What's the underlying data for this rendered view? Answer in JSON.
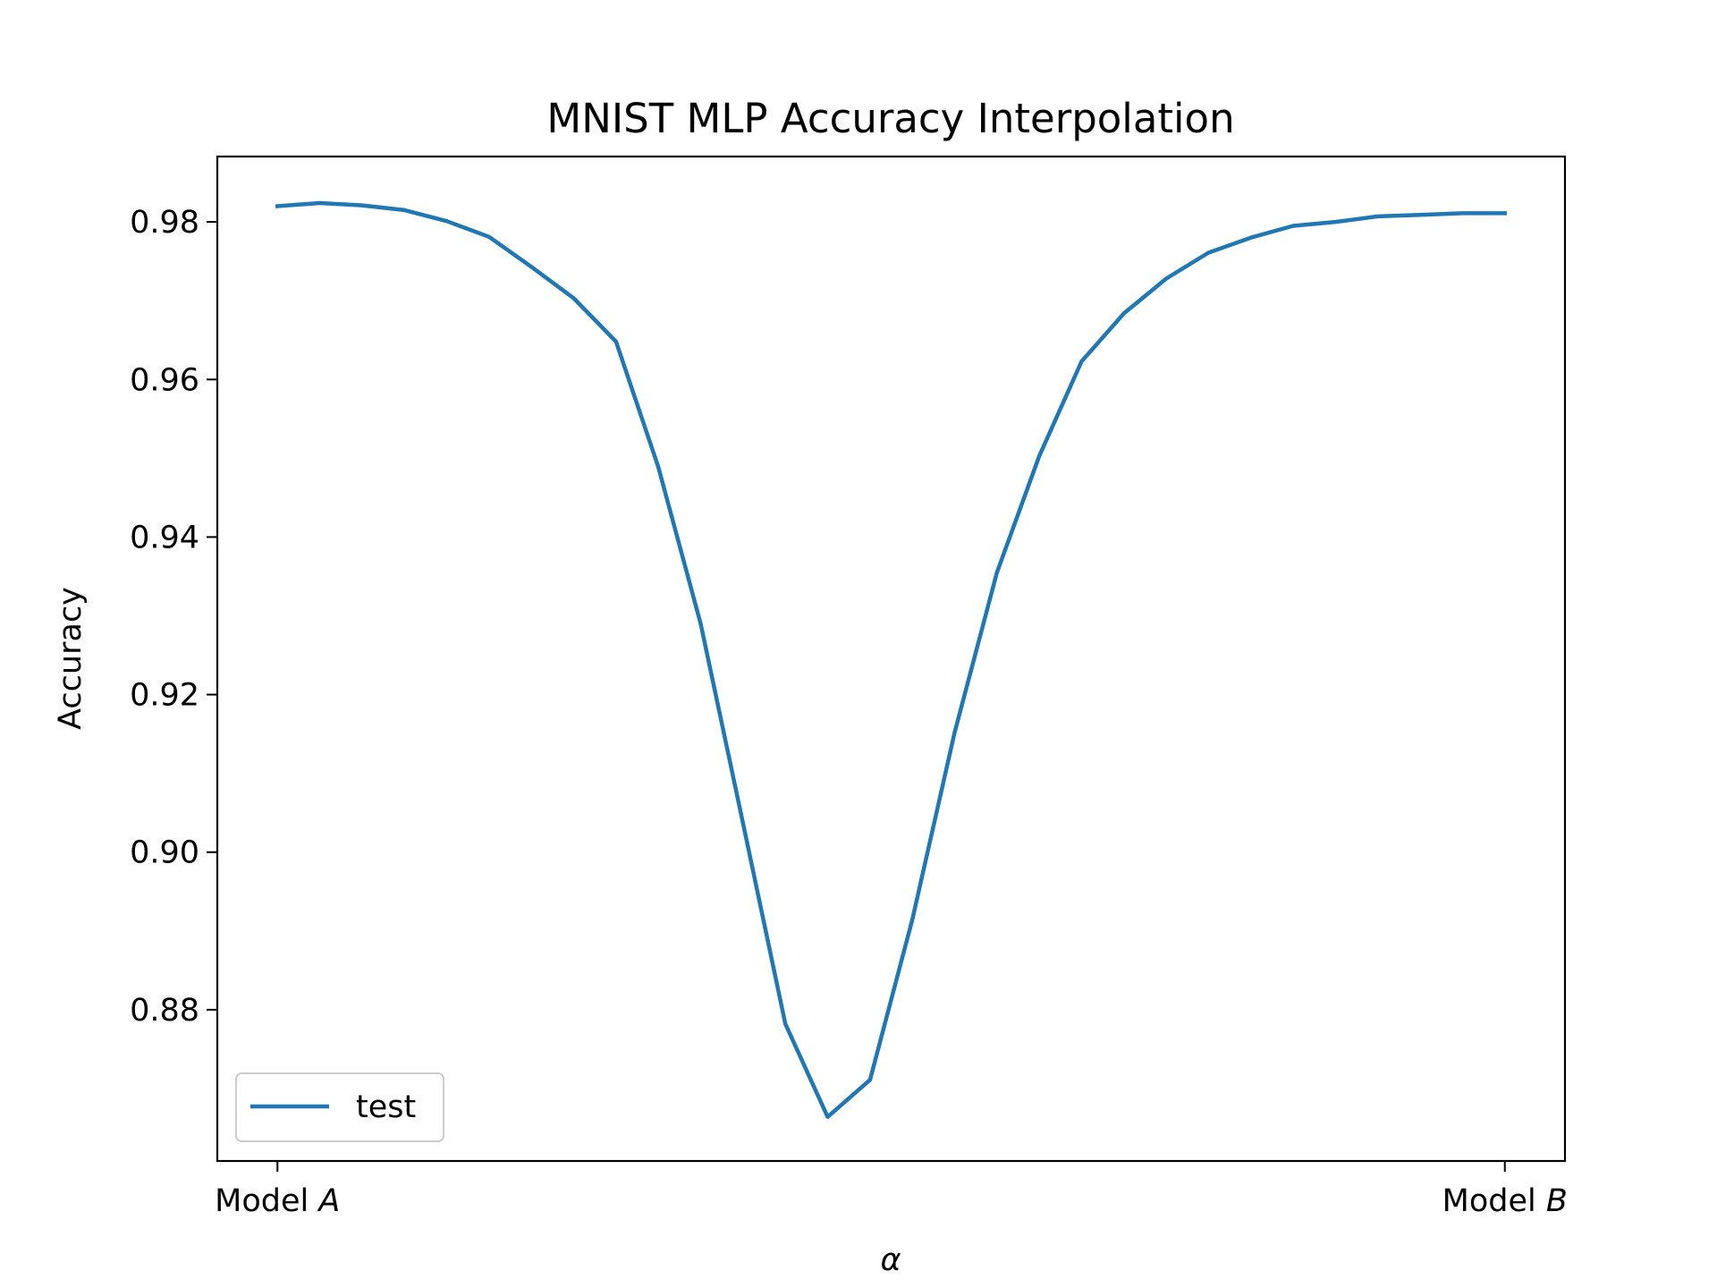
{
  "chart_data": {
    "type": "line",
    "title": "MNIST MLP Accuracy Interpolation",
    "xlabel": "α",
    "ylabel": "Accuracy",
    "xlim": [
      -0.049,
      1.049
    ],
    "ylim": [
      0.8608,
      0.9883
    ],
    "x_ticks": [
      {
        "value": 0,
        "label_prefix": "Model ",
        "label_var": "A"
      },
      {
        "value": 1,
        "label_prefix": "Model ",
        "label_var": "B"
      }
    ],
    "y_ticks": [
      {
        "value": 0.88,
        "label": "0.88"
      },
      {
        "value": 0.9,
        "label": "0.90"
      },
      {
        "value": 0.92,
        "label": "0.92"
      },
      {
        "value": 0.94,
        "label": "0.94"
      },
      {
        "value": 0.96,
        "label": "0.96"
      },
      {
        "value": 0.98,
        "label": "0.98"
      }
    ],
    "grid": false,
    "legend": {
      "placement": "lower-left"
    },
    "series": [
      {
        "name": "test",
        "color": "#1f77b4",
        "x": [
          0.0,
          0.0345,
          0.069,
          0.1034,
          0.1379,
          0.1724,
          0.2069,
          0.2414,
          0.2759,
          0.3103,
          0.3448,
          0.3793,
          0.4138,
          0.4483,
          0.4828,
          0.5172,
          0.5517,
          0.5862,
          0.6207,
          0.6552,
          0.6897,
          0.7241,
          0.7586,
          0.7931,
          0.8276,
          0.8621,
          0.8966,
          0.931,
          0.9655,
          1.0
        ],
        "y": [
          0.982,
          0.9824,
          0.9821,
          0.9815,
          0.9801,
          0.9781,
          0.9743,
          0.9703,
          0.9648,
          0.9489,
          0.929,
          0.9037,
          0.8782,
          0.8664,
          0.8711,
          0.8914,
          0.9152,
          0.9355,
          0.9503,
          0.9623,
          0.9684,
          0.9728,
          0.9761,
          0.978,
          0.9795,
          0.98,
          0.9807,
          0.9809,
          0.9811,
          0.9811
        ]
      }
    ]
  }
}
